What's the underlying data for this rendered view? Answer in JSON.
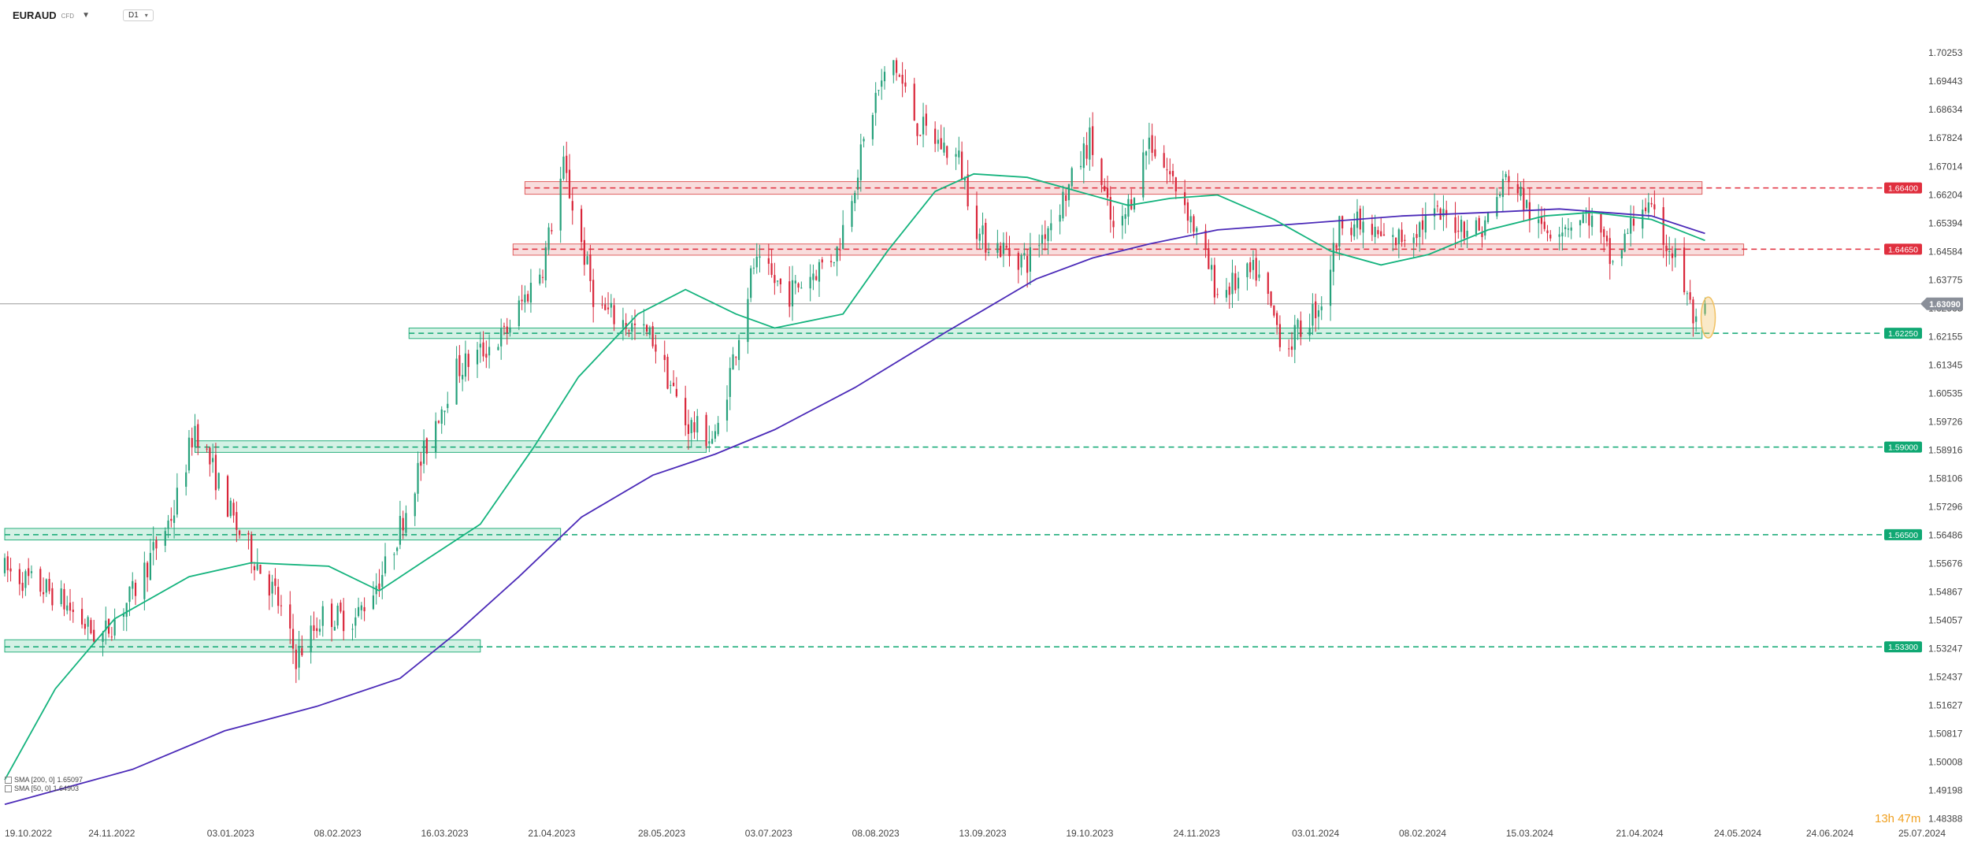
{
  "header": {
    "symbol": "EURAUD",
    "symbol_type": "CFD",
    "timeframe": "D1"
  },
  "legend": [
    {
      "label": "SMA [200, 0]",
      "value": "1.65097",
      "color": "#4b2ab8"
    },
    {
      "label": "SMA [50, 0]",
      "value": "1.64903",
      "color": "#14b37d"
    }
  ],
  "countdown": "13h 47m",
  "chart_data": {
    "type": "candlestick",
    "symbol": "EURAUD",
    "timeframe": "D1",
    "ylim": [
      1.4838,
      1.71
    ],
    "xlim": [
      "2022-10-19",
      "2024-07-25"
    ],
    "y_ticks": [
      "1.70253",
      "1.69443",
      "1.68634",
      "1.67824",
      "1.67014",
      "1.66204",
      "1.65394",
      "1.64584",
      "1.63775",
      "1.62965",
      "1.62155",
      "1.61345",
      "1.60535",
      "1.59726",
      "1.58916",
      "1.58106",
      "1.57296",
      "1.56486",
      "1.55676",
      "1.54867",
      "1.54057",
      "1.53247",
      "1.52437",
      "1.51627",
      "1.50817",
      "1.50008",
      "1.49198",
      "1.48388"
    ],
    "x_ticks": [
      "19.10.2022",
      "24.11.2022",
      "03.01.2023",
      "08.02.2023",
      "16.03.2023",
      "21.04.2023",
      "28.05.2023",
      "03.07.2023",
      "08.08.2023",
      "13.09.2023",
      "19.10.2023",
      "24.11.2023",
      "03.01.2024",
      "08.02.2024",
      "15.03.2024",
      "21.04.2024",
      "24.05.2024",
      "24.06.2024",
      "25.07.2024"
    ],
    "current_price": {
      "value": 1.6309,
      "label": "1.63090"
    },
    "levels": [
      {
        "value": 1.664,
        "label": "1.66400",
        "type": "resistance",
        "zone": [
          1.6622,
          1.6658
        ],
        "from": "2023-04-12",
        "to": "2024-05-12"
      },
      {
        "value": 1.6465,
        "label": "1.64650",
        "type": "resistance",
        "zone": [
          1.6448,
          1.648
        ],
        "from": "2023-04-08",
        "to": "2024-05-26"
      },
      {
        "value": 1.6225,
        "label": "1.62250",
        "type": "support",
        "zone": [
          1.621,
          1.624
        ],
        "from": "2023-03-04",
        "to": "2024-05-12"
      },
      {
        "value": 1.59,
        "label": "1.59000",
        "type": "support",
        "zone": [
          1.5885,
          1.5918
        ],
        "from": "2022-12-22",
        "to": "2023-06-12"
      },
      {
        "value": 1.565,
        "label": "1.56500",
        "type": "support",
        "zone": [
          1.5635,
          1.5668
        ],
        "from": "2022-10-19",
        "to": "2023-04-24"
      },
      {
        "value": 1.533,
        "label": "1.53300",
        "type": "support",
        "zone": [
          1.5315,
          1.535
        ],
        "from": "2022-10-19",
        "to": "2023-03-28"
      }
    ],
    "path_keypoints": [
      [
        "2022-10-19",
        1.555
      ],
      [
        "2022-11-05",
        1.548
      ],
      [
        "2022-11-20",
        1.535
      ],
      [
        "2022-12-01",
        1.548
      ],
      [
        "2022-12-15",
        1.572
      ],
      [
        "2022-12-22",
        1.596
      ],
      [
        "2023-01-05",
        1.567
      ],
      [
        "2023-01-18",
        1.548
      ],
      [
        "2023-01-25",
        1.53
      ],
      [
        "2023-02-03",
        1.542
      ],
      [
        "2023-02-14",
        1.541
      ],
      [
        "2023-02-25",
        1.557
      ],
      [
        "2023-03-12",
        1.596
      ],
      [
        "2023-03-20",
        1.612
      ],
      [
        "2023-04-05",
        1.622
      ],
      [
        "2023-04-18",
        1.642
      ],
      [
        "2023-04-25",
        1.67
      ],
      [
        "2023-05-06",
        1.63
      ],
      [
        "2023-05-25",
        1.621
      ],
      [
        "2023-06-05",
        1.597
      ],
      [
        "2023-06-15",
        1.592
      ],
      [
        "2023-06-28",
        1.642
      ],
      [
        "2023-07-10",
        1.634
      ],
      [
        "2023-07-26",
        1.646
      ],
      [
        "2023-08-08",
        1.69
      ],
      [
        "2023-08-14",
        1.7
      ],
      [
        "2023-08-22",
        1.682
      ],
      [
        "2023-09-05",
        1.672
      ],
      [
        "2023-09-12",
        1.65
      ],
      [
        "2023-09-28",
        1.643
      ],
      [
        "2023-10-12",
        1.664
      ],
      [
        "2023-10-19",
        1.678
      ],
      [
        "2023-10-28",
        1.648
      ],
      [
        "2023-11-08",
        1.678
      ],
      [
        "2023-11-20",
        1.66
      ],
      [
        "2023-12-01",
        1.634
      ],
      [
        "2023-12-14",
        1.64
      ],
      [
        "2023-12-24",
        1.618
      ],
      [
        "2024-01-05",
        1.632
      ],
      [
        "2024-01-12",
        1.656
      ],
      [
        "2024-01-28",
        1.648
      ],
      [
        "2024-02-12",
        1.656
      ],
      [
        "2024-02-28",
        1.652
      ],
      [
        "2024-03-08",
        1.668
      ],
      [
        "2024-03-18",
        1.652
      ],
      [
        "2024-04-04",
        1.656
      ],
      [
        "2024-04-12",
        1.642
      ],
      [
        "2024-04-22",
        1.66
      ],
      [
        "2024-05-03",
        1.644
      ],
      [
        "2024-05-10",
        1.624
      ],
      [
        "2024-05-13",
        1.6309
      ]
    ],
    "series": [
      {
        "name": "SMA [200, 0]",
        "color": "#4b2ab8",
        "last": 1.65097,
        "points": [
          [
            "2022-10-19",
            1.488
          ],
          [
            "2022-12-01",
            1.498
          ],
          [
            "2023-01-01",
            1.509
          ],
          [
            "2023-02-01",
            1.516
          ],
          [
            "2023-03-01",
            1.524
          ],
          [
            "2023-03-20",
            1.537
          ],
          [
            "2023-04-10",
            1.553
          ],
          [
            "2023-05-01",
            1.57
          ],
          [
            "2023-05-25",
            1.582
          ],
          [
            "2023-06-15",
            1.588
          ],
          [
            "2023-07-05",
            1.595
          ],
          [
            "2023-08-01",
            1.607
          ],
          [
            "2023-09-01",
            1.623
          ],
          [
            "2023-10-01",
            1.638
          ],
          [
            "2023-10-20",
            1.644
          ],
          [
            "2023-11-08",
            1.648
          ],
          [
            "2023-12-01",
            1.652
          ],
          [
            "2024-01-01",
            1.654
          ],
          [
            "2024-02-01",
            1.656
          ],
          [
            "2024-03-01",
            1.657
          ],
          [
            "2024-03-25",
            1.658
          ],
          [
            "2024-04-25",
            1.656
          ],
          [
            "2024-05-13",
            1.651
          ]
        ]
      },
      {
        "name": "SMA [50, 0]",
        "color": "#14b37d",
        "last": 1.64903,
        "points": [
          [
            "2022-10-19",
            1.495
          ],
          [
            "2022-11-05",
            1.521
          ],
          [
            "2022-11-25",
            1.541
          ],
          [
            "2022-12-20",
            1.553
          ],
          [
            "2023-01-10",
            1.557
          ],
          [
            "2023-02-05",
            1.556
          ],
          [
            "2023-02-22",
            1.549
          ],
          [
            "2023-03-10",
            1.558
          ],
          [
            "2023-03-28",
            1.568
          ],
          [
            "2023-04-15",
            1.59
          ],
          [
            "2023-04-30",
            1.61
          ],
          [
            "2023-05-20",
            1.628
          ],
          [
            "2023-06-05",
            1.635
          ],
          [
            "2023-06-22",
            1.628
          ],
          [
            "2023-07-05",
            1.624
          ],
          [
            "2023-07-28",
            1.628
          ],
          [
            "2023-08-12",
            1.646
          ],
          [
            "2023-08-28",
            1.663
          ],
          [
            "2023-09-10",
            1.668
          ],
          [
            "2023-09-28",
            1.667
          ],
          [
            "2023-10-15",
            1.663
          ],
          [
            "2023-11-01",
            1.659
          ],
          [
            "2023-11-15",
            1.661
          ],
          [
            "2023-12-01",
            1.662
          ],
          [
            "2023-12-20",
            1.655
          ],
          [
            "2024-01-08",
            1.646
          ],
          [
            "2024-01-25",
            1.642
          ],
          [
            "2024-02-10",
            1.645
          ],
          [
            "2024-03-01",
            1.652
          ],
          [
            "2024-03-20",
            1.656
          ],
          [
            "2024-04-05",
            1.657
          ],
          [
            "2024-04-25",
            1.655
          ],
          [
            "2024-05-13",
            1.649
          ]
        ]
      }
    ],
    "marker": {
      "type": "ellipse",
      "color": "#f0c060",
      "date": "2024-05-13",
      "price_range": [
        1.6225,
        1.6315
      ]
    }
  },
  "colors": {
    "up": "#26a17b",
    "down": "#d9263a",
    "resistance_fill": "#f7d7d7",
    "resistance_stroke": "#e06060",
    "resistance_label_bg": "#e02f3e",
    "support_fill": "#cdeee0",
    "support_stroke": "#2ab07e",
    "support_label_bg": "#10a873",
    "current_label_bg": "#8a8f99",
    "axis_text": "#444444"
  }
}
